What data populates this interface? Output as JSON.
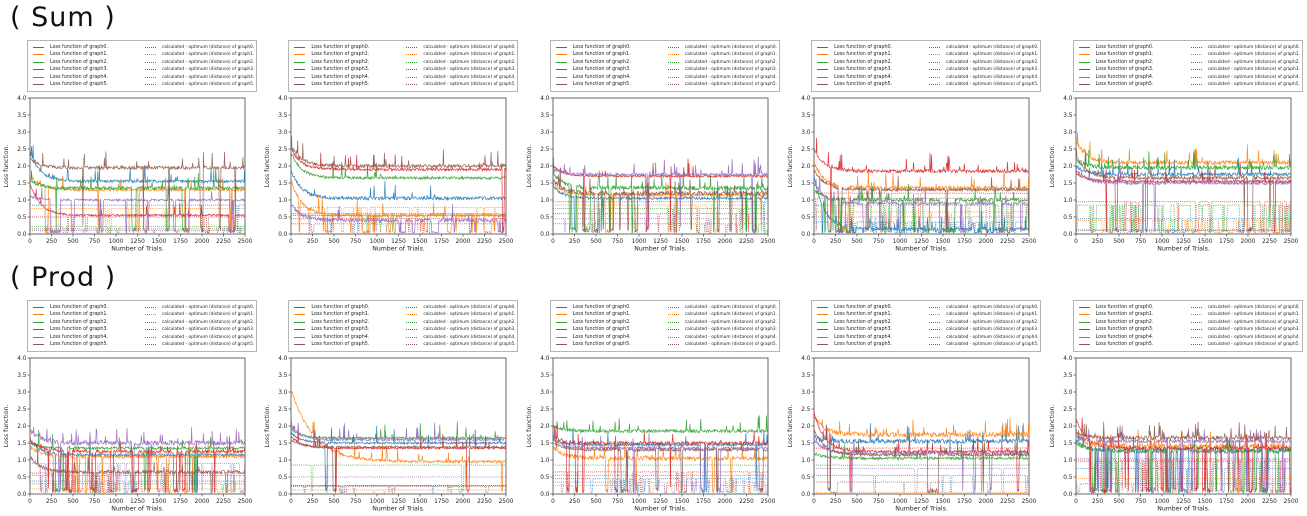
{
  "page": {
    "background": "#ffffff"
  },
  "rows": [
    {
      "title": "( Sum )"
    },
    {
      "title": "( Prod )"
    }
  ],
  "legend": {
    "solid_labels": [
      "Loss function of graph0.",
      "Loss function of graph1.",
      "Loss function of graph2.",
      "Loss function of graph3.",
      "Loss function of graph4.",
      "Loss function of graph5."
    ],
    "dashed_labels": [
      "calculated - optimum (distance) of graph0.",
      "calculated - optimum (distance) of graph1.",
      "calculated - optimum (distance) of graph2.",
      "calculated - optimum (distance) of graph3.",
      "calculated - optimum (distance) of graph4.",
      "calculated - optimum (distance) of graph5."
    ]
  },
  "axes": {
    "ylabel": "Loss function.",
    "xlabel": "Number of Trials.",
    "yticks": [
      "0.0",
      "0.5",
      "1.0",
      "1.5",
      "2.0",
      "2.5",
      "3.0",
      "3.5",
      "4.0"
    ],
    "xticks": [
      "0",
      "250",
      "500",
      "750",
      "1000",
      "1250",
      "1500",
      "1750",
      "2000",
      "2250",
      "2500"
    ]
  },
  "chart_data": {
    "type": "line",
    "grid": {
      "rows": 2,
      "cols": 5
    },
    "title_rows": [
      "( Sum )",
      "( Prod )"
    ],
    "xlabel": "Number of Trials.",
    "ylabel": "Loss function.",
    "xlim": [
      0,
      2500
    ],
    "ylim": [
      0.0,
      4.0
    ],
    "xticks": [
      0,
      250,
      500,
      750,
      1000,
      1250,
      1500,
      1750,
      2000,
      2250,
      2500
    ],
    "yticks": [
      0.0,
      0.5,
      1.0,
      1.5,
      2.0,
      2.5,
      3.0,
      3.5,
      4.0
    ],
    "legend_position": "above-axes",
    "series_colors": [
      "#1f77b4",
      "#ff7f0e",
      "#2ca02c",
      "#d62728",
      "#9467bd",
      "#8c564b"
    ],
    "solid_series_labels": [
      "Loss function of graph0.",
      "Loss function of graph1.",
      "Loss function of graph2.",
      "Loss function of graph3.",
      "Loss function of graph4.",
      "Loss function of graph5."
    ],
    "dashed_series_labels": [
      "calculated - optimum (distance) of graph0.",
      "calculated - optimum (distance) of graph1.",
      "calculated - optimum (distance) of graph2.",
      "calculated - optimum (distance) of graph3.",
      "calculated - optimum (distance) of graph4.",
      "calculated - optimum (distance) of graph5."
    ],
    "solid_keys": [
      "start_value",
      "converged_level",
      "noise_amp",
      "spike_rate",
      "dropout_bar_density",
      "decay_tau_optional"
    ],
    "dashed_keys": [
      "level",
      "dropout_bar_density"
    ],
    "subplots": [
      {
        "group": "Sum",
        "col": 1,
        "seed": 11,
        "solid": [
          [
            2.4,
            1.55,
            0.04,
            0.15,
            0.02
          ],
          [
            1.75,
            1.3,
            0.04,
            0.1,
            0.12
          ],
          [
            1.6,
            1.35,
            0.05,
            0.15,
            0.12
          ],
          [
            1.5,
            0.55,
            0.03,
            0.05,
            0.08
          ],
          [
            1.1,
            1.0,
            0.03,
            0.08,
            0.35
          ],
          [
            2.2,
            1.95,
            0.05,
            0.2,
            0.04
          ]
        ],
        "dashed": [
          [
            0.85,
            0.06
          ],
          [
            0.75,
            0.2
          ],
          [
            0.22,
            0.2
          ],
          [
            0.5,
            0.1
          ],
          [
            0.1,
            0.05
          ],
          [
            0.15,
            0.25
          ]
        ]
      },
      {
        "group": "Sum",
        "col": 2,
        "seed": 12,
        "solid": [
          [
            1.9,
            1.05,
            0.05,
            0.2,
            0.01
          ],
          [
            1.6,
            0.55,
            0.06,
            0.1,
            0.4
          ],
          [
            2.4,
            1.65,
            0.04,
            0.1,
            0.02
          ],
          [
            2.5,
            1.9,
            0.04,
            0.1,
            0.02
          ],
          [
            0.9,
            0.4,
            0.05,
            0.15,
            0.25
          ],
          [
            2.6,
            2.0,
            0.05,
            0.2,
            0.02
          ]
        ],
        "dashed": [
          [
            0.6,
            0.05
          ],
          [
            0.78,
            0.3
          ],
          [
            0.55,
            0.05
          ],
          [
            0.45,
            0.1
          ],
          [
            0.55,
            0.15
          ],
          [
            0.3,
            0.05
          ]
        ]
      },
      {
        "group": "Sum",
        "col": 3,
        "seed": 13,
        "solid": [
          [
            1.4,
            1.05,
            0.04,
            0.1,
            0.1
          ],
          [
            1.5,
            1.15,
            0.04,
            0.1,
            0.15
          ],
          [
            1.8,
            1.35,
            0.06,
            0.3,
            0.25
          ],
          [
            2.0,
            1.7,
            0.03,
            0.15,
            0.18
          ],
          [
            1.9,
            1.75,
            0.04,
            0.25,
            0.05
          ],
          [
            1.6,
            1.2,
            0.06,
            0.15,
            0.3
          ]
        ],
        "dashed": [
          [
            0.95,
            0.1
          ],
          [
            0.85,
            0.15
          ],
          [
            0.75,
            0.15
          ],
          [
            0.6,
            0.12
          ],
          [
            0.45,
            0.1
          ],
          [
            0.3,
            0.15
          ]
        ]
      },
      {
        "group": "Sum",
        "col": 4,
        "seed": 14,
        "solid": [
          [
            1.7,
            0.15,
            0.05,
            0.3,
            0.5
          ],
          [
            2.1,
            1.35,
            0.06,
            0.25,
            0.04
          ],
          [
            1.3,
            1.0,
            0.05,
            0.2,
            0.3
          ],
          [
            2.5,
            1.85,
            0.05,
            0.35,
            0.02
          ],
          [
            1.5,
            0.9,
            0.04,
            0.15,
            0.25
          ],
          [
            1.9,
            1.3,
            0.04,
            0.1,
            0.04
          ]
        ],
        "dashed": [
          [
            0.35,
            0.4
          ],
          [
            0.65,
            0.1
          ],
          [
            0.85,
            0.3
          ],
          [
            1.2,
            0.04
          ],
          [
            0.5,
            0.1
          ],
          [
            1.05,
            0.04
          ]
        ]
      },
      {
        "group": "Sum",
        "col": 5,
        "seed": 15,
        "solid": [
          [
            2.0,
            1.75,
            0.05,
            0.15,
            0.02
          ],
          [
            2.75,
            2.1,
            0.06,
            0.2,
            0.02
          ],
          [
            2.2,
            1.95,
            0.06,
            0.25,
            0.02
          ],
          [
            1.8,
            1.55,
            0.04,
            0.1,
            0.04
          ],
          [
            1.9,
            1.5,
            0.05,
            0.1,
            0.04
          ],
          [
            2.3,
            1.65,
            0.05,
            0.1,
            0.08
          ]
        ],
        "dashed": [
          [
            0.45,
            0.1
          ],
          [
            0.4,
            0.35
          ],
          [
            0.85,
            0.45
          ],
          [
            0.95,
            0.15
          ],
          [
            0.1,
            0.05
          ],
          [
            0.12,
            0.1
          ]
        ]
      },
      {
        "group": "Prod",
        "col": 1,
        "seed": 21,
        "solid": [
          [
            1.6,
            1.15,
            0.04,
            0.1,
            0.1
          ],
          [
            1.4,
            1.1,
            0.05,
            0.1,
            0.25
          ],
          [
            1.5,
            1.35,
            0.04,
            0.1,
            0.1
          ],
          [
            1.6,
            1.25,
            0.05,
            0.1,
            0.3
          ],
          [
            1.9,
            1.5,
            0.07,
            0.35,
            0.12
          ],
          [
            1.1,
            0.65,
            0.05,
            0.1,
            0.25
          ]
        ],
        "dashed": [
          [
            0.38,
            0.1
          ],
          [
            0.15,
            0.2
          ],
          [
            0.3,
            0.1
          ],
          [
            0.62,
            0.25
          ],
          [
            0.9,
            0.3
          ],
          [
            0.55,
            0.2
          ]
        ]
      },
      {
        "group": "Prod",
        "col": 2,
        "seed": 22,
        "solid": [
          [
            1.8,
            1.5,
            0.03,
            0.1,
            0.02
          ],
          [
            3.1,
            0.95,
            0.04,
            0.15,
            0.04,
            260
          ],
          [
            1.9,
            1.65,
            0.03,
            0.12,
            0.03
          ],
          [
            1.7,
            1.35,
            0.03,
            0.08,
            0.04
          ],
          [
            2.0,
            1.6,
            0.04,
            0.15,
            0.03
          ],
          [
            1.6,
            1.38,
            0.03,
            0.1,
            0.03
          ]
        ],
        "dashed": [
          [
            0.25,
            0.02
          ],
          [
            0.12,
            0.05
          ],
          [
            0.85,
            0.03
          ],
          [
            0.25,
            0.05
          ],
          [
            0.5,
            0.04
          ],
          [
            0.22,
            0.03
          ]
        ]
      },
      {
        "group": "Prod",
        "col": 3,
        "seed": 23,
        "solid": [
          [
            1.6,
            1.45,
            0.04,
            0.1,
            0.1
          ],
          [
            1.4,
            1.05,
            0.06,
            0.2,
            0.05
          ],
          [
            2.0,
            1.85,
            0.05,
            0.2,
            0.12
          ],
          [
            1.7,
            1.5,
            0.05,
            0.15,
            0.35
          ],
          [
            1.6,
            1.35,
            0.04,
            0.1,
            0.08
          ],
          [
            1.5,
            1.3,
            0.04,
            0.1,
            0.1
          ]
        ],
        "dashed": [
          [
            0.45,
            0.3
          ],
          [
            0.25,
            0.05
          ],
          [
            0.85,
            0.1
          ],
          [
            0.65,
            0.15
          ],
          [
            0.35,
            0.2
          ],
          [
            0.55,
            0.05
          ]
        ]
      },
      {
        "group": "Prod",
        "col": 4,
        "seed": 24,
        "solid": [
          [
            1.65,
            1.55,
            0.06,
            0.25,
            0.02
          ],
          [
            2.3,
            1.75,
            0.07,
            0.3,
            0.02
          ],
          [
            1.2,
            1.05,
            0.04,
            0.1,
            0.05
          ],
          [
            2.4,
            1.25,
            0.04,
            0.15,
            0.05
          ],
          [
            1.6,
            1.2,
            0.04,
            0.1,
            0.05
          ],
          [
            1.9,
            1.15,
            0.04,
            0.15,
            0.06
          ]
        ],
        "dashed": [
          [
            0.55,
            0.05
          ],
          [
            0.05,
            0.02
          ],
          [
            0.85,
            0.05
          ],
          [
            1.35,
            0.03
          ],
          [
            0.75,
            0.05
          ],
          [
            0.35,
            0.05
          ]
        ]
      },
      {
        "group": "Prod",
        "col": 5,
        "seed": 25,
        "solid": [
          [
            1.6,
            1.25,
            0.05,
            0.1,
            0.25
          ],
          [
            1.8,
            1.4,
            0.08,
            0.3,
            0.15
          ],
          [
            1.5,
            1.3,
            0.05,
            0.1,
            0.4
          ],
          [
            2.2,
            1.35,
            0.05,
            0.15,
            0.45
          ],
          [
            1.7,
            1.55,
            0.05,
            0.15,
            0.35
          ],
          [
            1.8,
            1.65,
            0.06,
            0.3,
            0.04
          ]
        ],
        "dashed": [
          [
            0.75,
            0.1
          ],
          [
            0.45,
            0.2
          ],
          [
            0.95,
            0.3
          ],
          [
            1.0,
            0.4
          ],
          [
            1.05,
            0.4
          ],
          [
            0.3,
            0.1
          ]
        ]
      }
    ]
  }
}
